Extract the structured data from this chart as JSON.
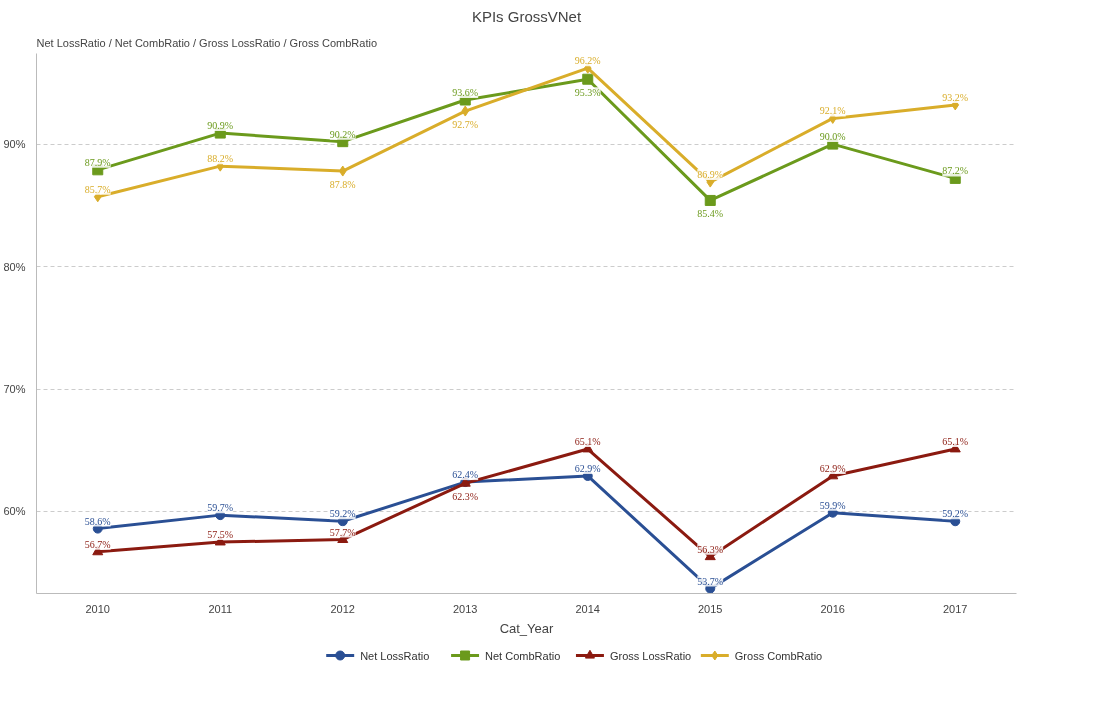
{
  "chart_data": {
    "type": "line",
    "title": "KPIs GrossVNet",
    "ylabel": "Net LossRatio / Net CombRatio / Gross LossRatio / Gross CombRatio",
    "xlabel": "Cat_Year",
    "categories": [
      "2010",
      "2011",
      "2012",
      "2013",
      "2014",
      "2015",
      "2016",
      "2017"
    ],
    "ylim": [
      53.3,
      97.4
    ],
    "yticks": [
      {
        "value": 60,
        "label": "60%"
      },
      {
        "value": 70,
        "label": "70%"
      },
      {
        "value": 80,
        "label": "80%"
      },
      {
        "value": 90,
        "label": "90%"
      }
    ],
    "grid": "y",
    "legend": "bottom",
    "line_style": "solid",
    "series": [
      {
        "name": "Net LossRatio",
        "color": "#2a4f94",
        "marker": "circle",
        "values": [
          58.6,
          59.7,
          59.2,
          62.4,
          62.9,
          53.7,
          59.9,
          59.2
        ],
        "value_labels": [
          "58.6%",
          "59.7%",
          "59.2%",
          "62.4%",
          "62.9%",
          "53.7%",
          "59.9%",
          "59.2%"
        ]
      },
      {
        "name": "Net CombRatio",
        "color": "#6b9a1c",
        "marker": "square",
        "values": [
          87.9,
          90.9,
          90.2,
          93.6,
          95.3,
          85.4,
          90.0,
          87.2
        ],
        "value_labels": [
          "87.9%",
          "90.9%",
          "90.2%",
          "93.6%",
          "95.3%",
          "85.4%",
          "90.0%",
          "87.2%"
        ]
      },
      {
        "name": "Gross LossRatio",
        "color": "#8b1a10",
        "marker": "triangle",
        "values": [
          56.7,
          57.5,
          57.7,
          62.3,
          65.1,
          56.3,
          62.9,
          65.1
        ],
        "value_labels": [
          "56.7%",
          "57.5%",
          "57.7%",
          "62.3%",
          "65.1%",
          "56.3%",
          "62.9%",
          "65.1%"
        ]
      },
      {
        "name": "Gross CombRatio",
        "color": "#d9ad2a",
        "marker": "diamond",
        "values": [
          85.7,
          88.2,
          87.8,
          92.7,
          96.2,
          86.9,
          92.1,
          93.2
        ],
        "value_labels": [
          "85.7%",
          "88.2%",
          "87.8%",
          "92.7%",
          "96.2%",
          "86.9%",
          "92.1%",
          "93.2%"
        ]
      }
    ]
  }
}
